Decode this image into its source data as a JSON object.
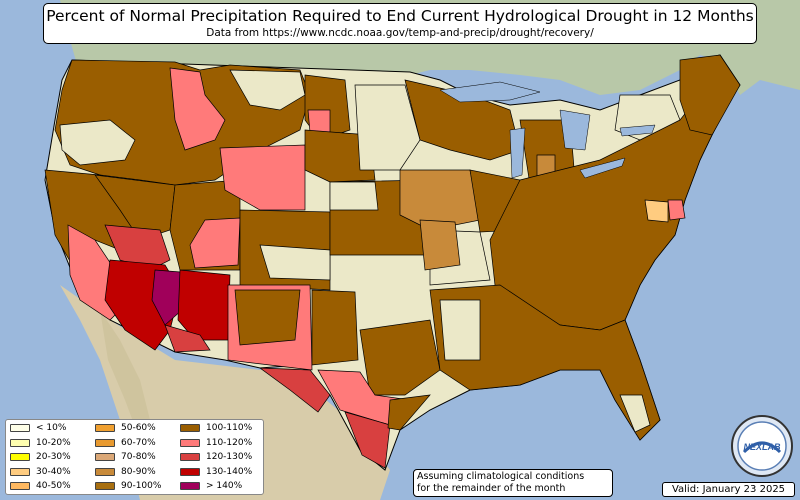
{
  "title": "Percent of Normal Precipitation Required to End Current Hydrological Drought in 12 Months",
  "subtitle": "Data from https://www.ncdc.noaa.gov/temp-and-precip/drought/recovery/",
  "note_line1": "Assuming climatological conditions",
  "note_line2": "for the remainder of the month",
  "valid": "Valid: January 23 2025",
  "logo_text": "NEXLAB",
  "legend": [
    {
      "label": "< 10%",
      "color": "#ffffe8"
    },
    {
      "label": "10-20%",
      "color": "#ffffb0"
    },
    {
      "label": "20-30%",
      "color": "#ffff00"
    },
    {
      "label": "30-40%",
      "color": "#ffcc80"
    },
    {
      "label": "40-50%",
      "color": "#ffb860"
    },
    {
      "label": "50-60%",
      "color": "#f0a030"
    },
    {
      "label": "60-70%",
      "color": "#e89a30"
    },
    {
      "label": "70-80%",
      "color": "#dba878"
    },
    {
      "label": "80-90%",
      "color": "#c88a3a"
    },
    {
      "label": "90-100%",
      "color": "#a86f10"
    },
    {
      "label": "100-110%",
      "color": "#9a5e00"
    },
    {
      "label": "110-120%",
      "color": "#ff7a7a"
    },
    {
      "label": "120-130%",
      "color": "#d84040"
    },
    {
      "label": "130-140%",
      "color": "#c00000"
    },
    {
      "label": "> 140%",
      "color": "#a0005a"
    }
  ],
  "colors": {
    "ocean": "#9bb8dc",
    "land": "#d8dcb8",
    "no_drought": "#ebe8c8",
    "canada": "#b8c8a8",
    "mexico": "#d8ccaa"
  }
}
